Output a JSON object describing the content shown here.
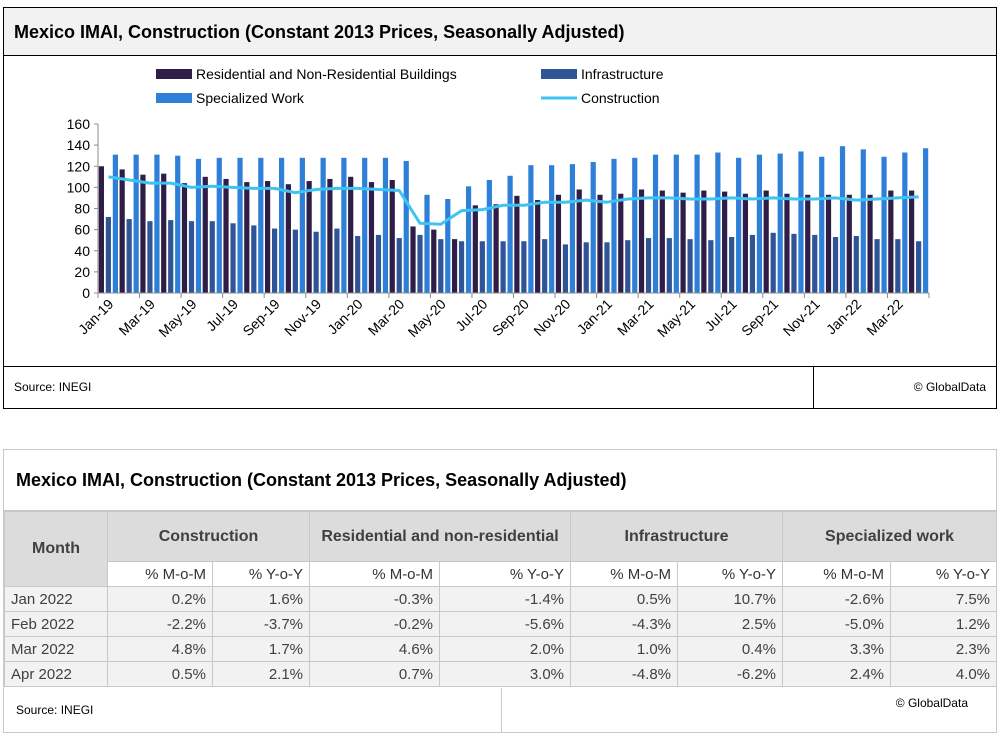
{
  "chart_title": "Mexico IMAI, Construction (Constant 2013 Prices, Seasonally Adjusted)",
  "source": "Source: INEGI",
  "credit": "© GlobalData",
  "colors": {
    "residential": "#2e1e47",
    "infrastructure": "#2f5597",
    "specialized": "#2e7fd8",
    "construction": "#3ec3f2"
  },
  "chart_data": {
    "type": "bar",
    "categories": [
      "Jan-19",
      "Feb-19",
      "Mar-19",
      "Apr-19",
      "May-19",
      "Jun-19",
      "Jul-19",
      "Aug-19",
      "Sep-19",
      "Oct-19",
      "Nov-19",
      "Dec-19",
      "Jan-20",
      "Feb-20",
      "Mar-20",
      "Apr-20",
      "May-20",
      "Jun-20",
      "Jul-20",
      "Aug-20",
      "Sep-20",
      "Oct-20",
      "Nov-20",
      "Dec-20",
      "Jan-21",
      "Feb-21",
      "Mar-21",
      "Apr-21",
      "May-21",
      "Jun-21",
      "Jul-21",
      "Aug-21",
      "Sep-21",
      "Oct-21",
      "Nov-21",
      "Dec-21",
      "Jan-22",
      "Feb-22",
      "Mar-22",
      "Apr-22"
    ],
    "tick_labels": [
      "Jan-19",
      "Mar-19",
      "May-19",
      "Jul-19",
      "Sep-19",
      "Nov-19",
      "Jan-20",
      "Mar-20",
      "May-20",
      "Jul-20",
      "Sep-20",
      "Nov-20",
      "Jan-21",
      "Mar-21",
      "May-21",
      "Jul-21",
      "Sep-21",
      "Nov-21",
      "Jan-22",
      "Mar-22"
    ],
    "ylim": [
      0,
      160
    ],
    "yticks": [
      0,
      20,
      40,
      60,
      80,
      100,
      120,
      140,
      160
    ],
    "legend_position": "top",
    "series": [
      {
        "name": "Residential and Non-Residential Buildings",
        "kind": "bar",
        "values": [
          120,
          117,
          112,
          113,
          104,
          110,
          108,
          105,
          106,
          103,
          106,
          108,
          110,
          105,
          107,
          63,
          60,
          51,
          83,
          84,
          92,
          88,
          93,
          98,
          93,
          94,
          98,
          97,
          95,
          97,
          96,
          94,
          97,
          94,
          93,
          93,
          93,
          93,
          97,
          97
        ]
      },
      {
        "name": "Infrastructure",
        "kind": "bar",
        "values": [
          72,
          70,
          68,
          69,
          68,
          68,
          66,
          64,
          61,
          60,
          58,
          61,
          54,
          55,
          52,
          55,
          51,
          49,
          49,
          49,
          49,
          51,
          46,
          48,
          48,
          50,
          52,
          52,
          51,
          50,
          53,
          55,
          57,
          56,
          55,
          53,
          54,
          51,
          51,
          49
        ]
      },
      {
        "name": "Specialized Work",
        "kind": "bar",
        "values": [
          131,
          131,
          131,
          130,
          127,
          128,
          128,
          128,
          128,
          128,
          128,
          128,
          128,
          128,
          125,
          93,
          89,
          101,
          107,
          111,
          121,
          121,
          122,
          124,
          127,
          128,
          131,
          131,
          131,
          133,
          128,
          131,
          132,
          134,
          129,
          139,
          136,
          129,
          133,
          137
        ]
      },
      {
        "name": "Construction",
        "kind": "line",
        "values": [
          110,
          107,
          104,
          104,
          100,
          101,
          100,
          99,
          99,
          95,
          98,
          99,
          99,
          98,
          97,
          66,
          65,
          78,
          79,
          83,
          83,
          86,
          86,
          88,
          86,
          89,
          90,
          90,
          89,
          89,
          90,
          89,
          90,
          89,
          89,
          90,
          88,
          89,
          90,
          91
        ]
      }
    ]
  },
  "table": {
    "title": "Mexico IMAI, Construction (Constant 2013 Prices, Seasonally Adjusted)",
    "month_header": "Month",
    "groups": [
      "Construction",
      "Residential and non-residential",
      "Infrastructure",
      "Specialized work"
    ],
    "subheaders": [
      "% M-o-M",
      "% Y-o-Y",
      "% M-o-M",
      "% Y-o-Y",
      "% M-o-M",
      "% Y-o-Y",
      "% M-o-M",
      "% Y-o-Y"
    ],
    "rows": [
      {
        "month": "Jan 2022",
        "values": [
          "0.2%",
          "1.6%",
          "-0.3%",
          "-1.4%",
          "0.5%",
          "10.7%",
          "-2.6%",
          "7.5%"
        ]
      },
      {
        "month": "Feb 2022",
        "values": [
          "-2.2%",
          "-3.7%",
          "-0.2%",
          "-5.6%",
          "-4.3%",
          "2.5%",
          "-5.0%",
          "1.2%"
        ]
      },
      {
        "month": "Mar 2022",
        "values": [
          "4.8%",
          "1.7%",
          "4.6%",
          "2.0%",
          "1.0%",
          "0.4%",
          "3.3%",
          "2.3%"
        ]
      },
      {
        "month": "Apr 2022",
        "values": [
          "0.5%",
          "2.1%",
          "0.7%",
          "3.0%",
          "-4.8%",
          "-6.2%",
          "2.4%",
          "4.0%"
        ]
      }
    ],
    "source": "Source: INEGI",
    "credit": "© GlobalData"
  }
}
